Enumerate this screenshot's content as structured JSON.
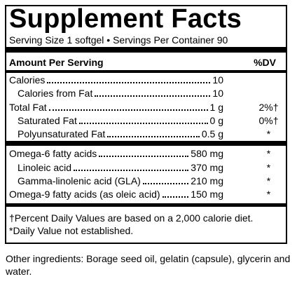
{
  "header": {
    "title": "Supplement Facts",
    "serving": "Serving Size 1 softgel • Servings Per Container 90"
  },
  "columns": {
    "amount": "Amount Per Serving",
    "dv": "%DV"
  },
  "rows": [
    {
      "name": "Calories",
      "amount": "10"
    },
    {
      "name": "Calories from Fat",
      "amount": "10"
    },
    {
      "name": "Total Fat",
      "amount": "1 g",
      "dv": "2%†"
    },
    {
      "name": "Saturated Fat",
      "amount": "0 g",
      "dv": "0%†"
    },
    {
      "name": "Polyunsaturated Fat",
      "amount": "0.5 g",
      "dv": "*"
    },
    {
      "name": "Omega-6 fatty acids",
      "amount": "580 mg",
      "dv": "*"
    },
    {
      "name": "Linoleic acid",
      "amount": "370 mg",
      "dv": "*"
    },
    {
      "name": "Gamma-linolenic acid (GLA)",
      "amount": "210 mg",
      "dv": "*"
    },
    {
      "name": "Omega-9 fatty acids (as oleic acid)",
      "amount": "150 mg",
      "dv": "*"
    }
  ],
  "footnotes": [
    "†Percent Daily Values are based on a 2,000 calorie diet.",
    "*Daily Value not established."
  ],
  "other_ingredients": "Other ingredients: Borage seed oil, gelatin (capsule), glycerin and water."
}
